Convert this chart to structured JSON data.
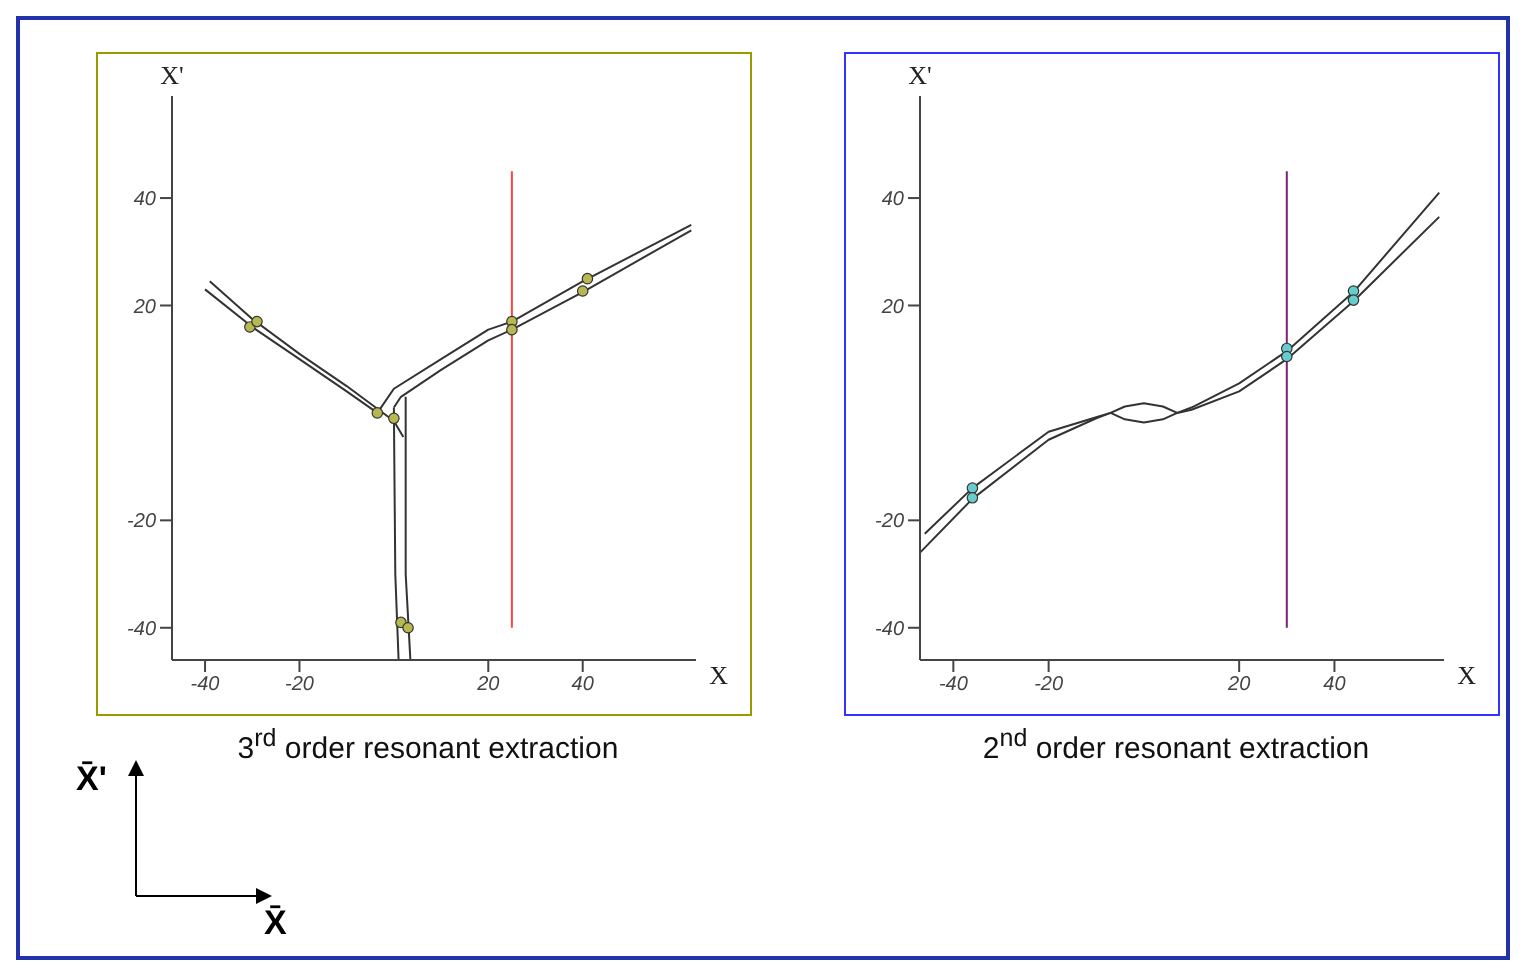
{
  "chart_data": [
    {
      "type": "line",
      "xlabel": "X",
      "ylabel": "X'",
      "xlim": [
        -47,
        64
      ],
      "ylim": [
        -46,
        59
      ],
      "xticks": [
        -40,
        -20,
        20,
        40
      ],
      "yticks": [
        -40,
        -20,
        20,
        40
      ],
      "grid": false,
      "legend": false,
      "line_style": "solid",
      "annotations": [
        "3$^{rd}$ order resonant extraction"
      ],
      "series": [
        {
          "type": "line",
          "color": "#333333",
          "x": [
            -39,
            -30,
            -20,
            -10,
            0,
            2
          ],
          "values": [
            24.5,
            17.5,
            11,
            5,
            -1.5,
            -4.5
          ]
        },
        {
          "type": "line",
          "color": "#333333",
          "x": [
            -40,
            -30,
            -20,
            -10,
            -3.5
          ],
          "values": [
            23,
            16,
            10,
            4,
            0
          ]
        },
        {
          "type": "line",
          "color": "#333333",
          "x": [
            -3.5,
            0,
            10,
            20,
            25,
            40,
            63
          ],
          "values": [
            0,
            4.5,
            10,
            15.5,
            17,
            24.5,
            35
          ]
        },
        {
          "type": "line",
          "color": "#333333",
          "x": [
            0,
            1.5,
            10,
            20,
            25,
            40,
            63
          ],
          "values": [
            1,
            3,
            8,
            13.5,
            15.5,
            22.5,
            34
          ]
        },
        {
          "type": "line",
          "color": "#333333",
          "x": [
            0,
            0.3,
            1
          ],
          "values": [
            1,
            -30,
            -46
          ]
        },
        {
          "type": "line",
          "color": "#333333",
          "x": [
            2.5,
            2.5,
            3.5
          ],
          "values": [
            3,
            -30,
            -46
          ]
        },
        {
          "type": "line",
          "color": "#ff4444",
          "x": [
            25,
            25
          ],
          "values": [
            45,
            -40
          ]
        },
        {
          "type": "scatter",
          "marker": "circle",
          "color": "#b8b850",
          "x": [
            -30.5,
            -29,
            25,
            25,
            40,
            41,
            -3.5,
            0,
            1.5,
            3
          ],
          "values": [
            16,
            17,
            17,
            15.5,
            22.7,
            25,
            0,
            -1,
            -39,
            -40
          ]
        }
      ]
    },
    {
      "type": "line",
      "xlabel": "X",
      "ylabel": "X'",
      "xlim": [
        -47,
        63
      ],
      "ylim": [
        -46,
        59
      ],
      "xticks": [
        -40,
        -20,
        20,
        40
      ],
      "yticks": [
        -40,
        -20,
        20,
        40
      ],
      "grid": false,
      "legend": false,
      "line_style": "solid",
      "annotations": [
        "2$^{nd}$ order resonant extraction"
      ],
      "series": [
        {
          "type": "line",
          "color": "#333333",
          "x": [
            -46,
            -36,
            -20,
            -10,
            -7,
            -4,
            0,
            4,
            7,
            10,
            20,
            30,
            44,
            62
          ],
          "values": [
            -22.5,
            -14,
            -3.5,
            -0.8,
            0,
            1.2,
            1.8,
            1.2,
            0,
            1,
            5.5,
            11.5,
            22.5,
            41
          ]
        },
        {
          "type": "line",
          "color": "#333333",
          "x": [
            -47,
            -36,
            -20,
            -10,
            -7,
            -4,
            0,
            4,
            7,
            10,
            20,
            30,
            44,
            62
          ],
          "values": [
            -26,
            -16,
            -5,
            -1,
            0,
            -1.2,
            -1.8,
            -1.2,
            0,
            0.6,
            4,
            10,
            20.8,
            36.5
          ]
        },
        {
          "type": "line",
          "color": "#7b1f7b",
          "x": [
            30,
            30
          ],
          "values": [
            45,
            -40
          ]
        },
        {
          "type": "scatter",
          "marker": "circle",
          "color": "#66cccc",
          "x": [
            -36,
            -36,
            30,
            30,
            44,
            44
          ],
          "values": [
            -14,
            -15.8,
            12,
            10.5,
            22.7,
            21
          ]
        }
      ]
    },
    {
      "type": "other",
      "annotations": [
        "X̄'",
        "X̄"
      ]
    }
  ]
}
